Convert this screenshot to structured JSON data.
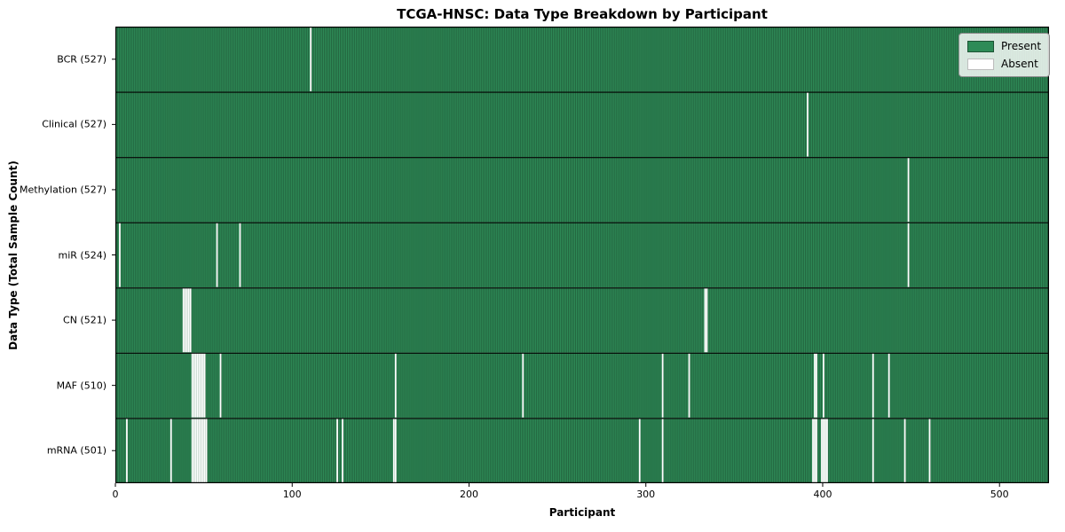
{
  "title": "TCGA-HNSC: Data Type Breakdown by Participant",
  "legend": {
    "present_label": "Present",
    "absent_label": "Absent"
  },
  "chart_data": {
    "type": "heatmap",
    "title": "TCGA-HNSC: Data Type Breakdown by Participant",
    "xlabel": "Participant",
    "ylabel": "Data Type (Total Sample Count)",
    "legend_entries": [
      "Present",
      "Absent"
    ],
    "legend_position": "upper right",
    "colors": {
      "present": "#2e8b57",
      "present_edge": "#1d5334",
      "absent": "#ffffff",
      "frame": "#000000"
    },
    "n_participants": 528,
    "xlim": [
      0,
      528
    ],
    "x_ticks": [
      0,
      100,
      200,
      300,
      400,
      500
    ],
    "rows": [
      {
        "label": "BCR (527)",
        "data_type": "BCR",
        "total_sample_count": 527,
        "absent_participants": [
          110
        ]
      },
      {
        "label": "Clinical (527)",
        "data_type": "Clinical",
        "total_sample_count": 527,
        "absent_participants": [
          391
        ]
      },
      {
        "label": "Methylation (527)",
        "data_type": "Methylation",
        "total_sample_count": 527,
        "absent_participants": [
          448
        ]
      },
      {
        "label": "miR (524)",
        "data_type": "miR",
        "total_sample_count": 524,
        "absent_participants": [
          2,
          57,
          70,
          448
        ]
      },
      {
        "label": "CN (521)",
        "data_type": "CN",
        "total_sample_count": 521,
        "absent_participants": [
          38,
          39,
          40,
          41,
          42,
          333,
          334
        ]
      },
      {
        "label": "MAF (510)",
        "data_type": "MAF",
        "total_sample_count": 510,
        "absent_participants": [
          43,
          44,
          45,
          46,
          47,
          48,
          49,
          50,
          59,
          158,
          230,
          309,
          324,
          395,
          396,
          400,
          428,
          437
        ]
      },
      {
        "label": "mRNA (501)",
        "data_type": "mRNA",
        "total_sample_count": 501,
        "absent_participants": [
          6,
          31,
          43,
          44,
          45,
          46,
          47,
          48,
          49,
          50,
          51,
          125,
          128,
          157,
          158,
          296,
          309,
          394,
          395,
          396,
          399,
          400,
          401,
          402,
          428,
          446,
          460
        ]
      }
    ]
  }
}
